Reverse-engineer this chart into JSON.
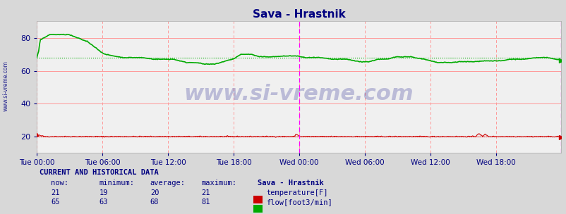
{
  "title": "Sava - Hrastnik",
  "title_color": "#000080",
  "title_fontsize": 11,
  "bg_color": "#d8d8d8",
  "plot_bg_color": "#f0f0f0",
  "watermark": "www.si-vreme.com",
  "watermark_color": "#000080",
  "watermark_alpha": 0.22,
  "ylim": [
    10,
    90
  ],
  "yticks": [
    20,
    40,
    60,
    80
  ],
  "xlabel_color": "#000080",
  "ylabel_color": "#000080",
  "xtick_labels": [
    "Tue 00:00",
    "Tue 06:00",
    "Tue 12:00",
    "Tue 18:00",
    "Wed 00:00",
    "Wed 06:00",
    "Wed 12:00",
    "Wed 18:00"
  ],
  "xtick_positions": [
    0,
    72,
    144,
    216,
    288,
    360,
    432,
    504
  ],
  "total_points": 576,
  "vline_positions": [
    288,
    575
  ],
  "vline_color": "#ff00ff",
  "grid_major_color": "#ff9999",
  "temp_color": "#cc0000",
  "flow_color": "#00aa00",
  "temp_avg": 20,
  "flow_avg": 68,
  "sidebar_text": "www.si-vreme.com",
  "sidebar_color": "#000080",
  "footer_header": "CURRENT AND HISTORICAL DATA",
  "footer_cols": [
    "now:",
    "minimum:",
    "average:",
    "maximum:",
    "Sava - Hrastnik"
  ],
  "temp_row": [
    "21",
    "19",
    "20",
    "21"
  ],
  "flow_row": [
    "65",
    "63",
    "68",
    "81"
  ],
  "temp_label": "temperature[F]",
  "flow_label": "flow[foot3/min]",
  "temp_swatch_color": "#cc0000",
  "flow_swatch_color": "#00aa00"
}
